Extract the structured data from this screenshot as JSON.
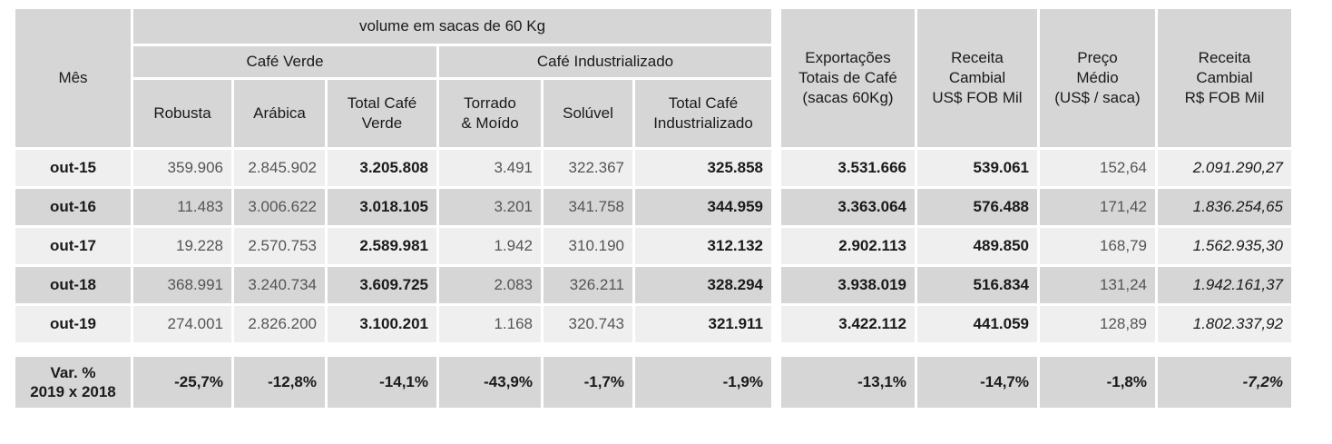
{
  "header": {
    "mes": "Mês",
    "volume_title": "volume em sacas de 60 Kg",
    "cafe_verde": "Café Verde",
    "cafe_industrializado": "Café Industrializado",
    "exportacoes": "Exportações\nTotais de Café\n(sacas 60Kg)",
    "receita_usd": "Receita\nCambial\nUS$ FOB Mil",
    "preco": "Preço\nMédio\n(US$ / saca)",
    "receita_brl": "Receita\nCambial\nR$ FOB Mil",
    "robusta": "Robusta",
    "arabica": "Arábica",
    "total_verde": "Total Café\nVerde",
    "torrado": "Torrado\n& Moído",
    "soluvel": "Solúvel",
    "total_industrializado": "Total Café\nIndustrializado"
  },
  "rows": [
    {
      "mes": "out-15",
      "robusta": "359.906",
      "arabica": "2.845.902",
      "total_verde": "3.205.808",
      "torrado": "3.491",
      "soluvel": "322.367",
      "total_ind": "325.858",
      "exportacoes": "3.531.666",
      "receita_usd": "539.061",
      "preco": "152,64",
      "receita_brl": "2.091.290,27"
    },
    {
      "mes": "out-16",
      "robusta": "11.483",
      "arabica": "3.006.622",
      "total_verde": "3.018.105",
      "torrado": "3.201",
      "soluvel": "341.758",
      "total_ind": "344.959",
      "exportacoes": "3.363.064",
      "receita_usd": "576.488",
      "preco": "171,42",
      "receita_brl": "1.836.254,65"
    },
    {
      "mes": "out-17",
      "robusta": "19.228",
      "arabica": "2.570.753",
      "total_verde": "2.589.981",
      "torrado": "1.942",
      "soluvel": "310.190",
      "total_ind": "312.132",
      "exportacoes": "2.902.113",
      "receita_usd": "489.850",
      "preco": "168,79",
      "receita_brl": "1.562.935,30"
    },
    {
      "mes": "out-18",
      "robusta": "368.991",
      "arabica": "3.240.734",
      "total_verde": "3.609.725",
      "torrado": "2.083",
      "soluvel": "326.211",
      "total_ind": "328.294",
      "exportacoes": "3.938.019",
      "receita_usd": "516.834",
      "preco": "131,24",
      "receita_brl": "1.942.161,37"
    },
    {
      "mes": "out-19",
      "robusta": "274.001",
      "arabica": "2.826.200",
      "total_verde": "3.100.201",
      "torrado": "1.168",
      "soluvel": "320.743",
      "total_ind": "321.911",
      "exportacoes": "3.422.112",
      "receita_usd": "441.059",
      "preco": "128,89",
      "receita_brl": "1.802.337,92"
    }
  ],
  "variation": {
    "label": "Var. %\n2019 x 2018",
    "robusta": "-25,7%",
    "arabica": "-12,8%",
    "total_verde": "-14,1%",
    "torrado": "-43,9%",
    "soluvel": "-1,7%",
    "total_ind": "-1,9%",
    "exportacoes": "-13,1%",
    "receita_usd": "-14,7%",
    "preco": "-1,8%",
    "receita_brl": "-7,2%"
  }
}
